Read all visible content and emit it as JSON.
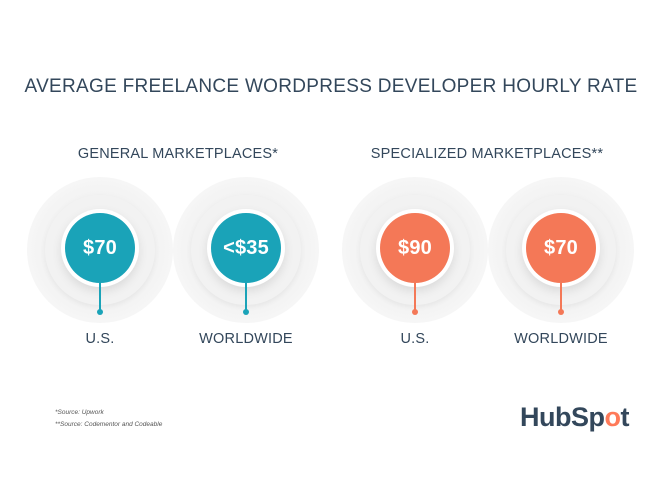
{
  "chart_data": {
    "type": "table",
    "title": "AVERAGE FREELANCE WORDPRESS DEVELOPER HOURLY RATE",
    "groups": [
      {
        "name": "GENERAL MARKETPLACES*",
        "color": "#1aa3b8",
        "items": [
          {
            "region": "U.S.",
            "value": "$70"
          },
          {
            "region": "WORLDWIDE",
            "value": "<$35"
          }
        ]
      },
      {
        "name": "SPECIALIZED MARKETPLACES**",
        "color": "#f47857",
        "items": [
          {
            "region": "U.S.",
            "value": "$90"
          },
          {
            "region": "WORLDWIDE",
            "value": "$70"
          }
        ]
      }
    ]
  },
  "footnotes": [
    "*Source: Upwork",
    "**Source: Codementor and Codeable"
  ],
  "logo": {
    "part1": "HubSp",
    "part2": "o",
    "part3": "t",
    "icon": "hubspot-sprocket-icon"
  }
}
